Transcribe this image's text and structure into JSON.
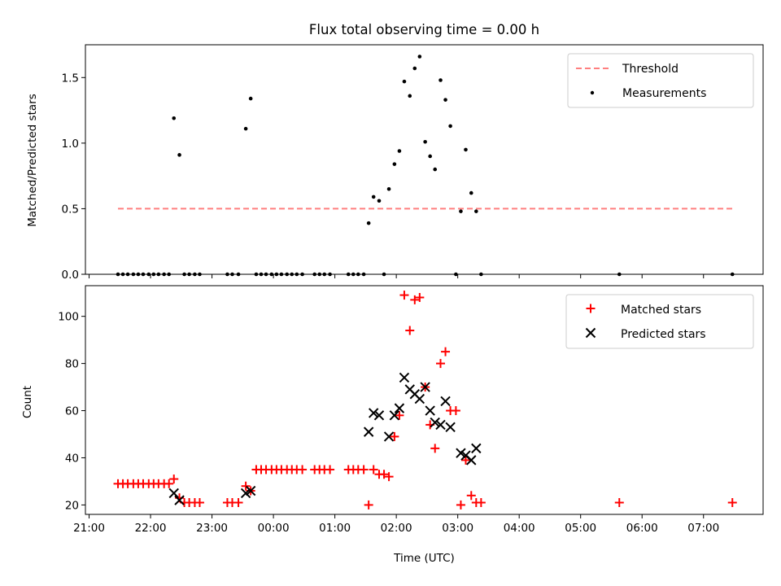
{
  "chart_data": [
    {
      "type": "scatter",
      "title": "Flux total observing time = 0.00 h",
      "xlabel": "",
      "ylabel": "Matched/Predicted stars",
      "ylim": [
        0,
        1.75
      ],
      "yticks": [
        0.0,
        0.5,
        1.0,
        1.5
      ],
      "ytick_labels": [
        "0.0",
        "0.5",
        "1.0",
        "1.5"
      ],
      "legend_position": "top-right",
      "threshold": {
        "name": "Threshold",
        "value": 0.5,
        "x_start_h": 21.47,
        "x_end_h": 31.47,
        "color": "#ff7f7f"
      },
      "series": [
        {
          "name": "Measurements",
          "color": "#000000",
          "points": [
            [
              21.47,
              0
            ],
            [
              21.55,
              0
            ],
            [
              21.63,
              0
            ],
            [
              21.72,
              0
            ],
            [
              21.8,
              0
            ],
            [
              21.88,
              0
            ],
            [
              21.97,
              0
            ],
            [
              22.05,
              0
            ],
            [
              22.13,
              0
            ],
            [
              22.22,
              0
            ],
            [
              22.3,
              0
            ],
            [
              22.38,
              1.19
            ],
            [
              22.47,
              0.91
            ],
            [
              22.55,
              0
            ],
            [
              22.63,
              0
            ],
            [
              22.72,
              0
            ],
            [
              22.8,
              0
            ],
            [
              23.25,
              0
            ],
            [
              23.33,
              0
            ],
            [
              23.43,
              0
            ],
            [
              23.55,
              1.11
            ],
            [
              23.63,
              1.34
            ],
            [
              23.72,
              0
            ],
            [
              23.8,
              0
            ],
            [
              23.88,
              0
            ],
            [
              23.97,
              0
            ],
            [
              24.05,
              0
            ],
            [
              24.13,
              0
            ],
            [
              24.22,
              0
            ],
            [
              24.3,
              0
            ],
            [
              24.38,
              0
            ],
            [
              24.47,
              0
            ],
            [
              24.67,
              0
            ],
            [
              24.75,
              0
            ],
            [
              24.83,
              0
            ],
            [
              24.92,
              0
            ],
            [
              25.22,
              0
            ],
            [
              25.3,
              0
            ],
            [
              25.38,
              0
            ],
            [
              25.47,
              0
            ],
            [
              25.55,
              0.39
            ],
            [
              25.63,
              0.59
            ],
            [
              25.72,
              0.56
            ],
            [
              25.8,
              0
            ],
            [
              25.88,
              0.65
            ],
            [
              25.97,
              0.84
            ],
            [
              26.05,
              0.94
            ],
            [
              26.13,
              1.47
            ],
            [
              26.22,
              1.36
            ],
            [
              26.3,
              1.57
            ],
            [
              26.38,
              1.66
            ],
            [
              26.47,
              1.01
            ],
            [
              26.55,
              0.9
            ],
            [
              26.63,
              0.8
            ],
            [
              26.72,
              1.48
            ],
            [
              26.8,
              1.33
            ],
            [
              26.88,
              1.13
            ],
            [
              26.97,
              0
            ],
            [
              27.05,
              0.48
            ],
            [
              27.13,
              0.95
            ],
            [
              27.22,
              0.62
            ],
            [
              27.3,
              0.48
            ],
            [
              27.38,
              0
            ],
            [
              29.63,
              0
            ],
            [
              31.47,
              0
            ]
          ]
        }
      ]
    },
    {
      "type": "scatter",
      "title": "",
      "xlabel": "Time (UTC)",
      "ylabel": "Count",
      "ylim": [
        16,
        113
      ],
      "yticks": [
        20,
        40,
        60,
        80,
        100
      ],
      "ytick_labels": [
        "20",
        "40",
        "60",
        "80",
        "100"
      ],
      "xlim_h": [
        20.94,
        31.97
      ],
      "xticks_h": [
        21,
        22,
        23,
        24,
        25,
        26,
        27,
        28,
        29,
        30,
        31
      ],
      "xtick_labels": [
        "21:00",
        "22:00",
        "23:00",
        "00:00",
        "01:00",
        "02:00",
        "03:00",
        "04:00",
        "05:00",
        "06:00",
        "07:00"
      ],
      "legend_position": "top-right",
      "series": [
        {
          "name": "Matched stars",
          "marker": "+",
          "color": "#ff0000",
          "points": [
            [
              21.47,
              29
            ],
            [
              21.55,
              29
            ],
            [
              21.63,
              29
            ],
            [
              21.72,
              29
            ],
            [
              21.8,
              29
            ],
            [
              21.88,
              29
            ],
            [
              21.97,
              29
            ],
            [
              22.05,
              29
            ],
            [
              22.13,
              29
            ],
            [
              22.22,
              29
            ],
            [
              22.3,
              29
            ],
            [
              22.38,
              31
            ],
            [
              22.47,
              23
            ],
            [
              22.55,
              21
            ],
            [
              22.63,
              21
            ],
            [
              22.72,
              21
            ],
            [
              22.8,
              21
            ],
            [
              23.25,
              21
            ],
            [
              23.33,
              21
            ],
            [
              23.43,
              21
            ],
            [
              23.55,
              28
            ],
            [
              23.63,
              26
            ],
            [
              23.72,
              35
            ],
            [
              23.8,
              35
            ],
            [
              23.88,
              35
            ],
            [
              23.97,
              35
            ],
            [
              24.05,
              35
            ],
            [
              24.13,
              35
            ],
            [
              24.22,
              35
            ],
            [
              24.3,
              35
            ],
            [
              24.38,
              35
            ],
            [
              24.47,
              35
            ],
            [
              24.67,
              35
            ],
            [
              24.75,
              35
            ],
            [
              24.83,
              35
            ],
            [
              24.92,
              35
            ],
            [
              25.22,
              35
            ],
            [
              25.3,
              35
            ],
            [
              25.38,
              35
            ],
            [
              25.47,
              35
            ],
            [
              25.55,
              20
            ],
            [
              25.63,
              35
            ],
            [
              25.72,
              33
            ],
            [
              25.8,
              33
            ],
            [
              25.88,
              32
            ],
            [
              25.97,
              49
            ],
            [
              26.05,
              58
            ],
            [
              26.13,
              109
            ],
            [
              26.22,
              94
            ],
            [
              26.3,
              107
            ],
            [
              26.38,
              108
            ],
            [
              26.47,
              70
            ],
            [
              26.55,
              54
            ],
            [
              26.63,
              44
            ],
            [
              26.72,
              80
            ],
            [
              26.8,
              85
            ],
            [
              26.88,
              60
            ],
            [
              26.97,
              60
            ],
            [
              27.05,
              20
            ],
            [
              27.13,
              39
            ],
            [
              27.22,
              24
            ],
            [
              27.3,
              21
            ],
            [
              27.38,
              21
            ],
            [
              29.63,
              21
            ],
            [
              31.47,
              21
            ]
          ]
        },
        {
          "name": "Predicted stars",
          "marker": "x",
          "color": "#000000",
          "points": [
            [
              22.38,
              25
            ],
            [
              22.47,
              22
            ],
            [
              23.55,
              25
            ],
            [
              23.63,
              26
            ],
            [
              25.55,
              51
            ],
            [
              25.63,
              59
            ],
            [
              25.72,
              58
            ],
            [
              25.88,
              49
            ],
            [
              25.97,
              58
            ],
            [
              26.05,
              61
            ],
            [
              26.13,
              74
            ],
            [
              26.22,
              69
            ],
            [
              26.3,
              67
            ],
            [
              26.38,
              65
            ],
            [
              26.47,
              70
            ],
            [
              26.55,
              60
            ],
            [
              26.63,
              55
            ],
            [
              26.72,
              54
            ],
            [
              26.8,
              64
            ],
            [
              26.88,
              53
            ],
            [
              27.05,
              42
            ],
            [
              27.13,
              41
            ],
            [
              27.22,
              39
            ],
            [
              27.3,
              44
            ]
          ]
        }
      ]
    }
  ]
}
